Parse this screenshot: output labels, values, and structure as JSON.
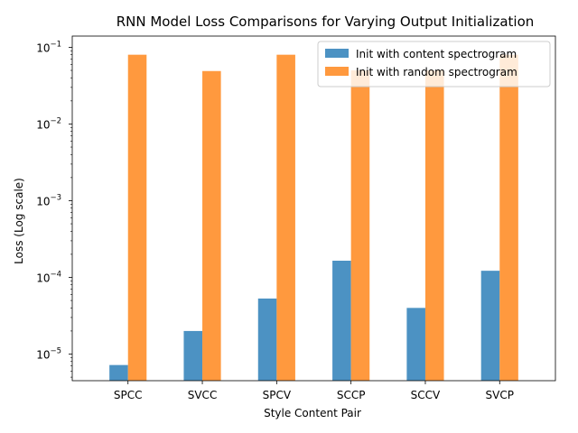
{
  "chart_data": {
    "type": "bar",
    "title": "RNN Model Loss Comparisons for Varying Output Initialization",
    "xlabel": "Style Content Pair",
    "ylabel": "Loss (Log scale)",
    "yscale": "log",
    "ylim": [
      4.5e-06,
      0.14
    ],
    "yticks": [
      {
        "value": 1e-05,
        "label": "10",
        "exp": "−5"
      },
      {
        "value": 0.0001,
        "label": "10",
        "exp": "−4"
      },
      {
        "value": 0.001,
        "label": "10",
        "exp": "−3"
      },
      {
        "value": 0.01,
        "label": "10",
        "exp": "−2"
      },
      {
        "value": 0.1,
        "label": "10",
        "exp": "−1"
      }
    ],
    "categories": [
      "SPCC",
      "SVCC",
      "SPCV",
      "SCCP",
      "SCCV",
      "SVCP"
    ],
    "series": [
      {
        "name": "Init with content spectrogram",
        "color": "#1f77b4",
        "values": [
          7.2e-06,
          2e-05,
          5.3e-05,
          0.000165,
          4e-05,
          0.000122
        ]
      },
      {
        "name": "Init with random spectrogram",
        "color": "#ff7f0e",
        "values": [
          0.08,
          0.049,
          0.08,
          0.05,
          0.05,
          0.08
        ]
      }
    ],
    "legend": "top-right",
    "grid": false
  }
}
